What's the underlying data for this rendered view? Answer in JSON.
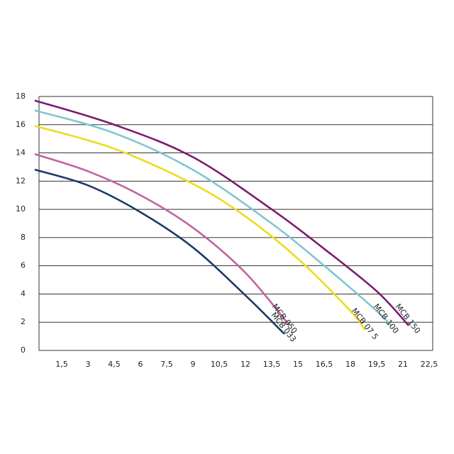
{
  "chart_data": {
    "type": "line",
    "xlim": [
      0,
      22.5
    ],
    "ylim": [
      0,
      18
    ],
    "xticks": [
      {
        "value": 1.5,
        "label": "1,5"
      },
      3,
      {
        "value": 4.5,
        "label": "4,5"
      },
      6,
      {
        "value": 7.5,
        "label": "7,5"
      },
      9,
      {
        "value": 10.5,
        "label": "10,5"
      },
      12,
      {
        "value": 13.5,
        "label": "13,5"
      },
      15,
      {
        "value": 16.5,
        "label": "16,5"
      },
      18,
      {
        "value": 19.5,
        "label": "19,5"
      },
      21,
      {
        "value": 22.5,
        "label": "22,5"
      }
    ],
    "yticks": [
      0,
      2,
      4,
      6,
      8,
      10,
      12,
      14,
      16,
      18
    ],
    "grid": true,
    "series": [
      {
        "name": "MCB 150",
        "color": "#7a1c6c",
        "x": [
          0,
          4.5,
          9,
          13.5,
          16.5,
          19.5,
          21.3
        ],
        "values": [
          17.7,
          16.0,
          13.7,
          10.0,
          7.2,
          4.2,
          1.8
        ]
      },
      {
        "name": "MCB 100",
        "color": "#7fc6d2",
        "x": [
          0,
          4.5,
          9,
          13.5,
          16.5,
          19.5,
          20.3
        ],
        "values": [
          17.0,
          15.4,
          12.8,
          9.0,
          6.0,
          2.8,
          1.8
        ]
      },
      {
        "name": "MCB 07 5",
        "color": "#ecdc1c",
        "x": [
          0,
          4.5,
          9,
          12,
          15,
          18,
          18.8
        ],
        "values": [
          15.9,
          14.3,
          11.8,
          9.5,
          6.5,
          2.8,
          1.5
        ]
      },
      {
        "name": "MCB 050",
        "color": "#c262a2",
        "x": [
          0,
          3,
          6,
          9,
          12,
          14.5
        ],
        "values": [
          13.9,
          12.7,
          11.0,
          8.7,
          5.5,
          1.8
        ]
      },
      {
        "name": "MCB 033",
        "color": "#1b3a68",
        "x": [
          0,
          3,
          6,
          9,
          12,
          14.2
        ],
        "values": [
          12.8,
          11.7,
          9.8,
          7.3,
          3.9,
          1.2
        ]
      }
    ]
  }
}
